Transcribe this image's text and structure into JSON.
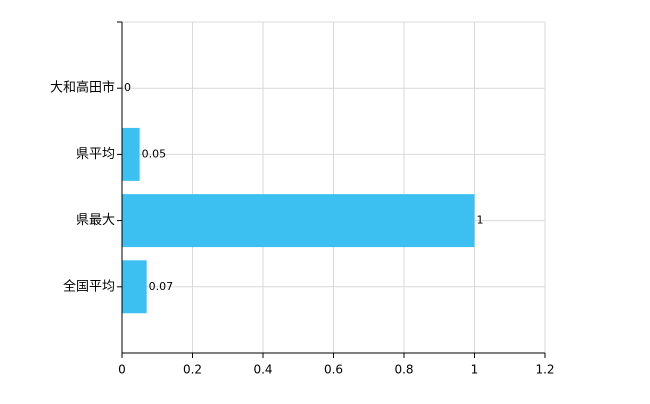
{
  "chart_data": {
    "type": "bar",
    "orientation": "horizontal",
    "categories": [
      "大和高田市",
      "県平均",
      "県最大",
      "全国平均"
    ],
    "values": [
      0,
      0.05,
      1,
      0.07
    ],
    "color": "#3cc0f2",
    "xlim": [
      0,
      1.2
    ],
    "xticks": [
      0,
      0.2,
      0.4,
      0.6,
      0.8,
      1,
      1.2
    ],
    "grid": true
  }
}
